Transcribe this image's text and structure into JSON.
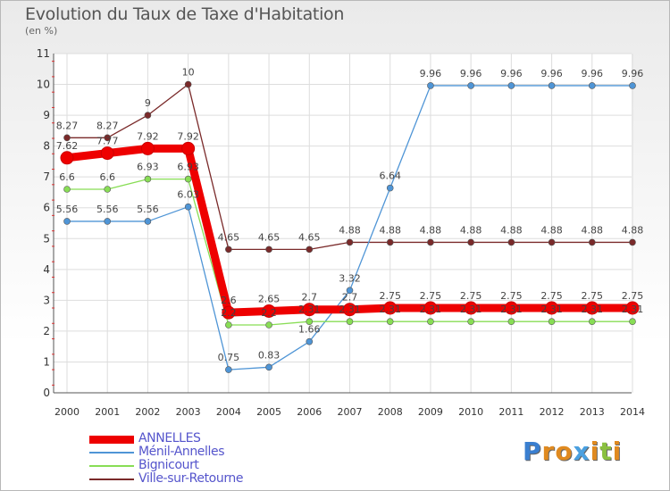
{
  "title": "Evolution du Taux de Taxe d'Habitation",
  "subtitle": "(en %)",
  "logo_text": "Proxiti",
  "chart_data": {
    "type": "line",
    "title": "Evolution du Taux de Taxe d'Habitation",
    "ylabel": "(en %)",
    "xlabel": "",
    "x": [
      "2000",
      "2001",
      "2002",
      "2003",
      "2004",
      "2005",
      "2006",
      "2007",
      "2008",
      "2009",
      "2010",
      "2011",
      "2012",
      "2013",
      "2014"
    ],
    "ylim": [
      0,
      11
    ],
    "yticks": [
      "0",
      "1",
      "2",
      "3",
      "4",
      "5",
      "6",
      "7",
      "8",
      "9",
      "10",
      "11"
    ],
    "grid": true,
    "legend": "bottom-left",
    "series": [
      {
        "name": "ANNELLES",
        "color": "#ee0000",
        "values": [
          7.62,
          7.77,
          7.92,
          7.92,
          2.6,
          2.65,
          2.7,
          2.7,
          2.75,
          2.75,
          2.75,
          2.75,
          2.75,
          2.75,
          2.75
        ],
        "labels": [
          "7.62",
          "7.77",
          "7.92",
          "7.92",
          "2.6",
          "2.65",
          "2.7",
          "2.7",
          "2.75",
          "2.75",
          "2.75",
          "2.75",
          "2.75",
          "2.75",
          "2.75"
        ]
      },
      {
        "name": "Ménil-Annelles",
        "color": "#4f95d6",
        "values": [
          5.56,
          5.56,
          5.56,
          6.03,
          0.75,
          0.83,
          1.66,
          3.32,
          6.64,
          9.96,
          9.96,
          9.96,
          9.96,
          9.96,
          9.96
        ],
        "labels": [
          "5.56",
          "5.56",
          "5.56",
          "6.03",
          "0.75",
          "0.83",
          "1.66",
          "3.32",
          "6.64",
          "9.96",
          "9.96",
          "9.96",
          "9.96",
          "9.96",
          "9.96"
        ]
      },
      {
        "name": "Bignicourt",
        "color": "#88dd55",
        "values": [
          6.6,
          6.6,
          6.93,
          6.93,
          2.2,
          2.2,
          2.31,
          2.31,
          2.31,
          2.31,
          2.31,
          2.31,
          2.31,
          2.31,
          2.31
        ],
        "labels": [
          "6.6",
          "6.6",
          "6.93",
          "6.93",
          "2.2",
          "2.2",
          "2.31",
          "2.31",
          "2.31",
          "2.31",
          "2.31",
          "2.31",
          "2.31",
          "2.31",
          "2.31"
        ]
      },
      {
        "name": "Ville-sur-Retourne",
        "color": "#7a2a2a",
        "values": [
          8.27,
          8.27,
          9,
          10,
          4.65,
          4.65,
          4.65,
          4.88,
          4.88,
          4.88,
          4.88,
          4.88,
          4.88,
          4.88,
          4.88
        ],
        "labels": [
          "8.27",
          "8.27",
          "9",
          "10",
          "4.65",
          "4.65",
          "4.65",
          "4.88",
          "4.88",
          "4.88",
          "4.88",
          "4.88",
          "4.88",
          "4.88",
          "4.88"
        ]
      }
    ]
  }
}
